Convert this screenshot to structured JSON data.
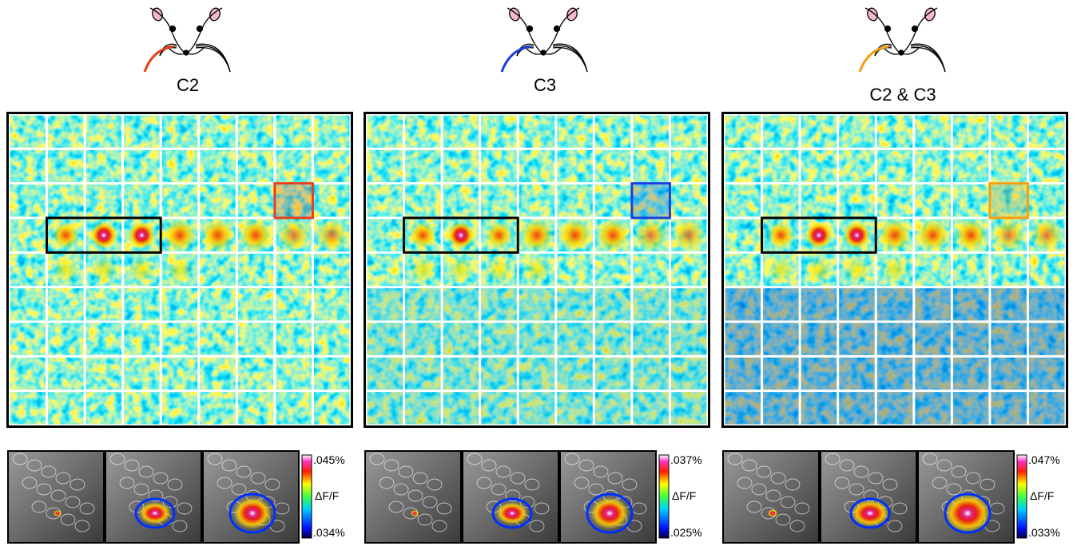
{
  "panels": [
    {
      "label": "C2",
      "color": "#e8401a",
      "colorbar": {
        "max": ".045%",
        "quantity": "ΔF/F",
        "min": ".034%"
      }
    },
    {
      "label": "C3",
      "color": "#1a3fe0",
      "colorbar": {
        "max": ".037%",
        "quantity": "ΔF/F",
        "min": ".025%"
      }
    },
    {
      "label": "C2 & C3",
      "color": "#f5a011",
      "colorbar": {
        "max": ".047%",
        "quantity": "ΔF/F",
        "min": ".033%"
      }
    }
  ]
}
